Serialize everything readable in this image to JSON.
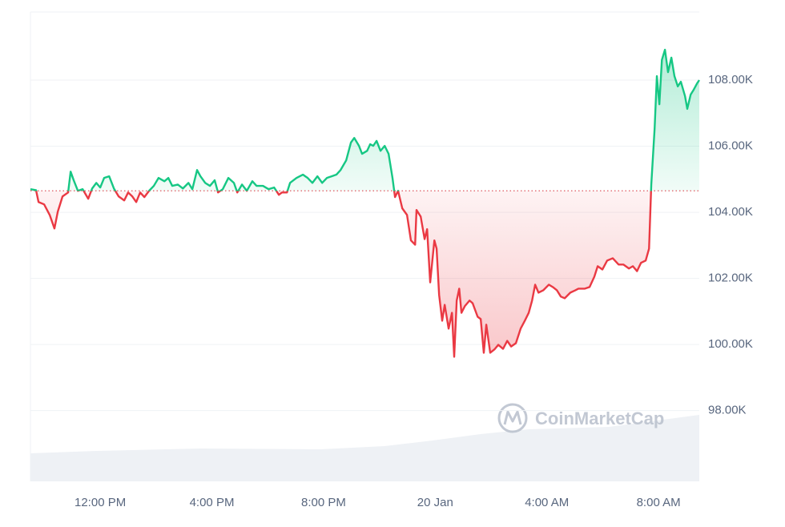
{
  "chart_data": {
    "type": "line",
    "x": [
      9.5,
      9.7,
      9.79,
      9.99,
      10.19,
      10.36,
      10.48,
      10.65,
      10.85,
      10.94,
      11.05,
      11.2,
      11.37,
      11.57,
      11.71,
      11.86,
      12.0,
      12.14,
      12.32,
      12.49,
      12.66,
      12.86,
      13.0,
      13.15,
      13.29,
      13.43,
      13.58,
      13.75,
      13.92,
      14.09,
      14.3,
      14.44,
      14.58,
      14.78,
      14.96,
      15.16,
      15.3,
      15.47,
      15.59,
      15.76,
      15.93,
      16.1,
      16.22,
      16.39,
      16.59,
      16.79,
      16.91,
      17.08,
      17.25,
      17.45,
      17.6,
      17.83,
      18.03,
      18.23,
      18.4,
      18.51,
      18.69,
      18.8,
      19.03,
      19.26,
      19.43,
      19.6,
      19.78,
      19.95,
      20.12,
      20.29,
      20.46,
      20.61,
      20.81,
      20.98,
      21.1,
      21.27,
      21.38,
      21.56,
      21.67,
      21.78,
      21.9,
      22.04,
      22.19,
      22.33,
      22.47,
      22.56,
      22.67,
      22.82,
      22.99,
      23.13,
      23.28,
      23.33,
      23.48,
      23.62,
      23.71,
      23.82,
      23.97,
      24.05,
      24.14,
      24.25,
      24.34,
      24.48,
      24.6,
      24.68,
      24.77,
      24.86,
      24.94,
      25.06,
      25.23,
      25.34,
      25.52,
      25.63,
      25.74,
      25.83,
      25.97,
      26.12,
      26.26,
      26.43,
      26.58,
      26.72,
      26.89,
      27.06,
      27.21,
      27.35,
      27.47,
      27.58,
      27.7,
      27.87,
      28.07,
      28.21,
      28.36,
      28.5,
      28.64,
      28.84,
      29.02,
      29.13,
      29.36,
      29.53,
      29.7,
      29.82,
      29.99,
      30.16,
      30.36,
      30.57,
      30.74,
      30.94,
      31.08,
      31.23,
      31.37,
      31.54,
      31.66,
      31.74,
      31.86,
      31.94,
      32.03,
      32.12,
      32.23,
      32.34,
      32.46,
      32.57,
      32.69,
      32.8,
      32.95,
      33.03,
      33.15,
      33.26,
      33.38,
      33.46
    ],
    "values": [
      104.7,
      104.67,
      104.31,
      104.24,
      103.92,
      103.51,
      104.02,
      104.48,
      104.6,
      105.23,
      104.97,
      104.65,
      104.7,
      104.41,
      104.72,
      104.89,
      104.75,
      105.04,
      105.09,
      104.72,
      104.48,
      104.36,
      104.6,
      104.48,
      104.31,
      104.6,
      104.46,
      104.65,
      104.8,
      105.04,
      104.94,
      105.04,
      104.8,
      104.84,
      104.72,
      104.89,
      104.7,
      105.28,
      105.09,
      104.89,
      104.8,
      104.97,
      104.6,
      104.7,
      105.04,
      104.89,
      104.6,
      104.84,
      104.65,
      104.94,
      104.8,
      104.8,
      104.7,
      104.75,
      104.53,
      104.6,
      104.6,
      104.89,
      105.04,
      105.14,
      105.04,
      104.89,
      105.09,
      104.89,
      105.04,
      105.09,
      105.14,
      105.28,
      105.57,
      106.11,
      106.25,
      106.01,
      105.77,
      105.86,
      106.06,
      106.01,
      106.16,
      105.86,
      106.01,
      105.77,
      105.04,
      104.46,
      104.65,
      104.12,
      103.92,
      103.15,
      103.02,
      104.07,
      103.87,
      103.19,
      103.49,
      101.88,
      103.15,
      102.9,
      101.5,
      100.72,
      101.2,
      100.48,
      100.96,
      99.63,
      101.33,
      101.69,
      100.96,
      101.16,
      101.33,
      101.25,
      100.84,
      100.77,
      99.75,
      100.6,
      99.75,
      99.85,
      99.99,
      99.87,
      100.11,
      99.94,
      100.04,
      100.48,
      100.72,
      100.96,
      101.33,
      101.81,
      101.57,
      101.64,
      101.81,
      101.74,
      101.64,
      101.45,
      101.4,
      101.57,
      101.64,
      101.69,
      101.69,
      101.74,
      102.05,
      102.37,
      102.27,
      102.54,
      102.61,
      102.42,
      102.42,
      102.3,
      102.37,
      102.22,
      102.47,
      102.54,
      102.9,
      104.84,
      106.54,
      108.12,
      107.27,
      108.61,
      108.92,
      108.24,
      108.68,
      108.12,
      107.81,
      107.95,
      107.51,
      107.13,
      107.56,
      107.71,
      107.9,
      108.0
    ],
    "baseline": 104.65,
    "up_color": "#16c784",
    "down_color": "#ea3943",
    "xlim": [
      9.5,
      33.46
    ],
    "xticks": [
      {
        "value": 12,
        "label": "12:00 PM"
      },
      {
        "value": 16,
        "label": "4:00 PM"
      },
      {
        "value": 20,
        "label": "8:00 PM"
      },
      {
        "value": 24,
        "label": "20 Jan"
      },
      {
        "value": 28,
        "label": "4:00 AM"
      },
      {
        "value": 32,
        "label": "8:00 AM"
      }
    ],
    "ylim": [
      95.86,
      110.06
    ],
    "yticks": [
      {
        "value": 98,
        "label": "98.00K"
      },
      {
        "value": 100,
        "label": "100.00K"
      },
      {
        "value": 102,
        "label": "102.00K"
      },
      {
        "value": 104,
        "label": "104.00K"
      },
      {
        "value": 106,
        "label": "106.00K"
      },
      {
        "value": 108,
        "label": "108.00K"
      }
    ],
    "grid": true,
    "watermark": "CoinMarketCap"
  }
}
